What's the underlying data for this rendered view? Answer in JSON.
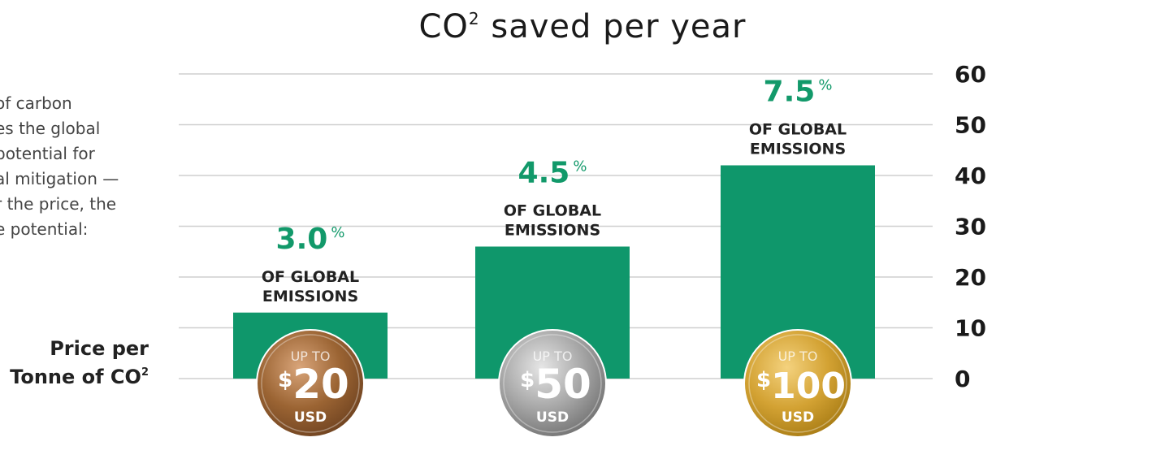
{
  "chart_data": {
    "type": "bar",
    "title": "CO",
    "title_sup": "2",
    "title_rest": " saved per year",
    "categories": [
      "$20",
      "$50",
      "$100"
    ],
    "values": [
      13,
      26,
      42
    ],
    "ylim": [
      0,
      60
    ],
    "y_ticks": [
      "0",
      "10",
      "20",
      "30",
      "40",
      "50",
      "60"
    ],
    "grid": true,
    "bar_color": "#0f976b",
    "pct_color": "#12996a",
    "annotations": [
      {
        "pct": "3.0",
        "pct_sign": "%",
        "line1": "OF GLOBAL",
        "line2": "EMISSIONS"
      },
      {
        "pct": "4.5",
        "pct_sign": "%",
        "line1": "OF GLOBAL",
        "line2": "EMISSIONS"
      },
      {
        "pct": "7.5",
        "pct_sign": "%",
        "line1": "OF GLOBAL",
        "line2": "EMISSIONS"
      }
    ],
    "coins": [
      {
        "top": "UP TO",
        "sign": "$",
        "amount": "20",
        "currency": "USD",
        "metal": "bronze"
      },
      {
        "top": "UP TO",
        "sign": "$",
        "amount": "50",
        "currency": "USD",
        "metal": "silver"
      },
      {
        "top": "UP TO",
        "sign": "$",
        "amount": "100",
        "currency": "USD",
        "metal": "gold"
      }
    ]
  },
  "description": [
    "of carbon",
    "es the global",
    "potential for",
    "al mitigation —",
    "r the price, the",
    "e potential:"
  ],
  "price_label": {
    "line1": "Price per",
    "line2": "Tonne of CO",
    "line2_sup": "2"
  }
}
